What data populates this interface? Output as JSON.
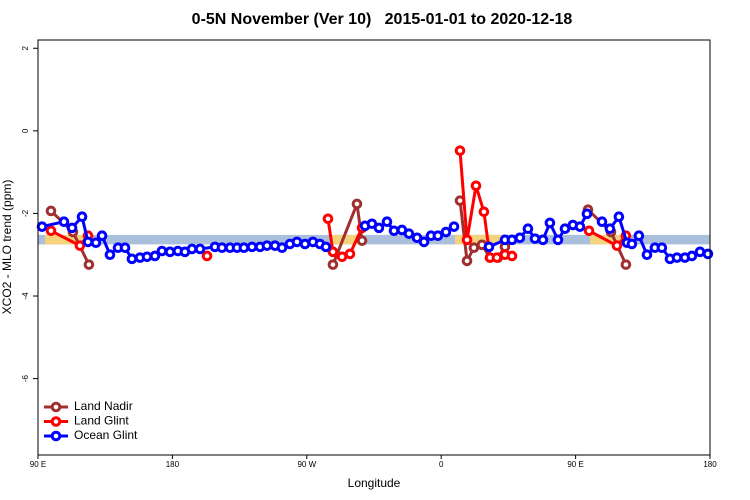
{
  "chart_data": {
    "type": "line",
    "title": "0-5N November (Ver 10)   2015-01-01 to 2020-12-18",
    "x_label": "Longitude",
    "y_label": "XCO2 - MLO trend (ppm)",
    "xlim": [
      90,
      540
    ],
    "ylim": [
      -7.85,
      2.2
    ],
    "xticks": [
      {
        "value": 90,
        "label": "90 E"
      },
      {
        "value": 180,
        "label": "180"
      },
      {
        "value": 270,
        "label": "90 W"
      },
      {
        "value": 360,
        "label": "0"
      },
      {
        "value": 450,
        "label": "90 E"
      },
      {
        "value": 540,
        "label": "180"
      }
    ],
    "yticks": [
      2,
      0,
      -2,
      -4,
      -6
    ],
    "legend": "bottom-left",
    "band": {
      "ylim": [
        -2.75,
        -2.52
      ],
      "color": "#a9bfdc"
    },
    "land_band": {
      "x_ranges": [
        [
          94.7,
          124.8
        ],
        [
          285.5,
          309
        ],
        [
          369.2,
          402.7
        ],
        [
          459.6,
          486.4
        ]
      ],
      "color": "#f5d27c"
    },
    "series": [
      {
        "name": "Land Nadir",
        "color": "#a03030",
        "x": [
          98.7,
          113.4,
          124.1,
          null,
          287.5,
          303.6,
          307.0,
          null,
          372.6,
          377.3,
          381.9,
          387.3,
          392.7,
          398.0,
          402.7,
          null,
          458.3,
          473.7,
          483.7
        ],
        "values": [
          -1.94,
          -2.45,
          -3.24,
          null,
          -3.24,
          -1.77,
          -2.66,
          null,
          -1.69,
          -3.15,
          -2.83,
          -2.76,
          -3.07,
          -3.07,
          -2.81,
          null,
          -1.91,
          -2.45,
          -3.24
        ]
      },
      {
        "name": "Land Glint",
        "color": "#ff0000",
        "x": [
          98.7,
          118.1,
          123.5,
          null,
          203.2,
          null,
          284.2,
          287.5,
          293.6,
          298.9,
          307.0,
          null,
          372.6,
          377.3,
          383.3,
          388.6,
          392.7,
          397.3,
          402.7,
          407.4,
          null,
          459.0,
          477.7,
          483.7
        ],
        "values": [
          -2.42,
          -2.78,
          -2.54,
          null,
          -3.03,
          null,
          -2.13,
          -2.93,
          -3.05,
          -2.98,
          -2.35,
          null,
          -0.48,
          -2.64,
          -1.33,
          -1.96,
          -3.07,
          -3.07,
          -3.0,
          -3.03,
          null,
          -2.42,
          -2.78,
          -2.54
        ]
      },
      {
        "name": "Ocean Glint",
        "color": "#0000ff",
        "x": [
          92.7,
          107.4,
          112.8,
          119.5,
          123.5,
          128.8,
          132.9,
          138.2,
          143.6,
          148.3,
          152.9,
          158.3,
          163.0,
          168.3,
          173.0,
          178.4,
          183.7,
          188.4,
          193.1,
          198.5,
          208.5,
          213.2,
          218.6,
          223.3,
          227.9,
          233.3,
          238.7,
          243.3,
          248.7,
          253.4,
          258.7,
          263.4,
          268.8,
          274.1,
          278.8,
          282.8,
          null,
          309.0,
          313.6,
          318.3,
          323.7,
          328.4,
          333.7,
          338.4,
          343.8,
          348.5,
          353.2,
          357.8,
          363.2,
          368.6,
          null,
          392.0,
          402.7,
          407.4,
          412.7,
          418.1,
          422.8,
          428.1,
          432.8,
          438.2,
          442.9,
          448.2,
          452.9,
          457.6,
          null,
          467.7,
          473.0,
          479.0,
          484.4,
          487.7,
          492.4,
          497.8,
          503.1,
          507.8,
          513.2,
          517.9,
          523.2,
          527.9,
          533.3,
          538.6
        ],
        "values": [
          -2.32,
          -2.2,
          -2.35,
          -2.08,
          -2.69,
          -2.71,
          -2.54,
          -3.0,
          -2.83,
          -2.83,
          -3.1,
          -3.07,
          -3.05,
          -3.03,
          -2.91,
          -2.93,
          -2.91,
          -2.93,
          -2.86,
          -2.86,
          -2.81,
          -2.83,
          -2.83,
          -2.83,
          -2.83,
          -2.81,
          -2.81,
          -2.78,
          -2.78,
          -2.83,
          -2.74,
          -2.69,
          -2.74,
          -2.69,
          -2.74,
          -2.81,
          null,
          -2.3,
          -2.25,
          -2.35,
          -2.2,
          -2.42,
          -2.4,
          -2.49,
          -2.59,
          -2.69,
          -2.54,
          -2.54,
          -2.45,
          -2.32,
          null,
          -2.81,
          -2.64,
          -2.64,
          -2.59,
          -2.37,
          -2.61,
          -2.64,
          -2.23,
          -2.64,
          -2.37,
          -2.28,
          -2.32,
          -2.01,
          null,
          -2.2,
          -2.37,
          -2.08,
          -2.71,
          -2.74,
          -2.54,
          -3.0,
          -2.83,
          -2.83,
          -3.1,
          -3.07,
          -3.07,
          -3.03,
          -2.93,
          -2.98
        ]
      }
    ]
  }
}
